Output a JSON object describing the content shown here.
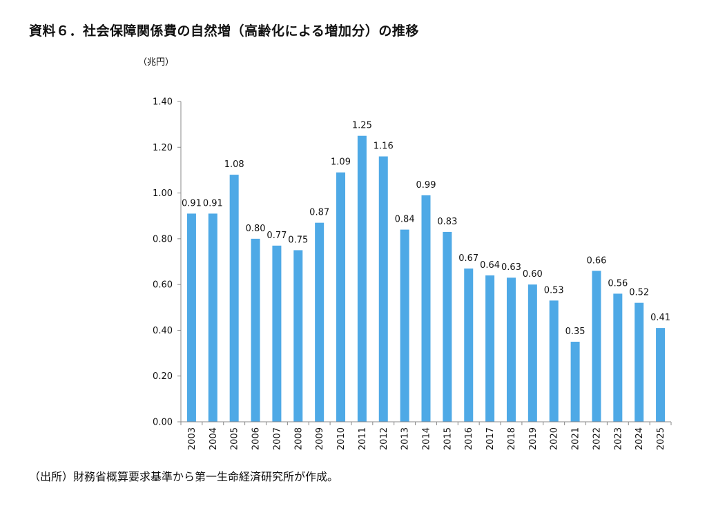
{
  "title": "資料６．社会保障関係費の自然増（高齢化による増加分）の推移",
  "source": "（出所）財務省概算要求基準から第一生命経済研究所が作成。",
  "chart_data": {
    "type": "bar",
    "unit_label": "（兆円）",
    "categories": [
      "2003",
      "2004",
      "2005",
      "2006",
      "2007",
      "2008",
      "2009",
      "2010",
      "2011",
      "2012",
      "2013",
      "2014",
      "2015",
      "2016",
      "2017",
      "2018",
      "2019",
      "2020",
      "2021",
      "2022",
      "2023",
      "2024",
      "2025"
    ],
    "values": [
      0.91,
      0.91,
      1.08,
      0.8,
      0.77,
      0.75,
      0.87,
      1.09,
      1.25,
      1.16,
      0.84,
      0.99,
      0.83,
      0.67,
      0.64,
      0.63,
      0.6,
      0.53,
      0.35,
      0.66,
      0.56,
      0.52,
      0.41
    ],
    "value_labels": [
      "0.91",
      "0.91",
      "1.08",
      "0.80",
      "0.77",
      "0.75",
      "0.87",
      "1.09",
      "1.25",
      "1.16",
      "0.84",
      "0.99",
      "0.83",
      "0.67",
      "0.64",
      "0.63",
      "0.60",
      "0.53",
      "0.35",
      "0.66",
      "0.56",
      "0.52",
      "0.41"
    ],
    "yticks": [
      "0.00",
      "0.20",
      "0.40",
      "0.60",
      "0.80",
      "1.00",
      "1.20",
      "1.40"
    ],
    "ylim": [
      0,
      1.4
    ],
    "grid": false,
    "legend": "none",
    "bar_color": "#4ea9e6"
  }
}
